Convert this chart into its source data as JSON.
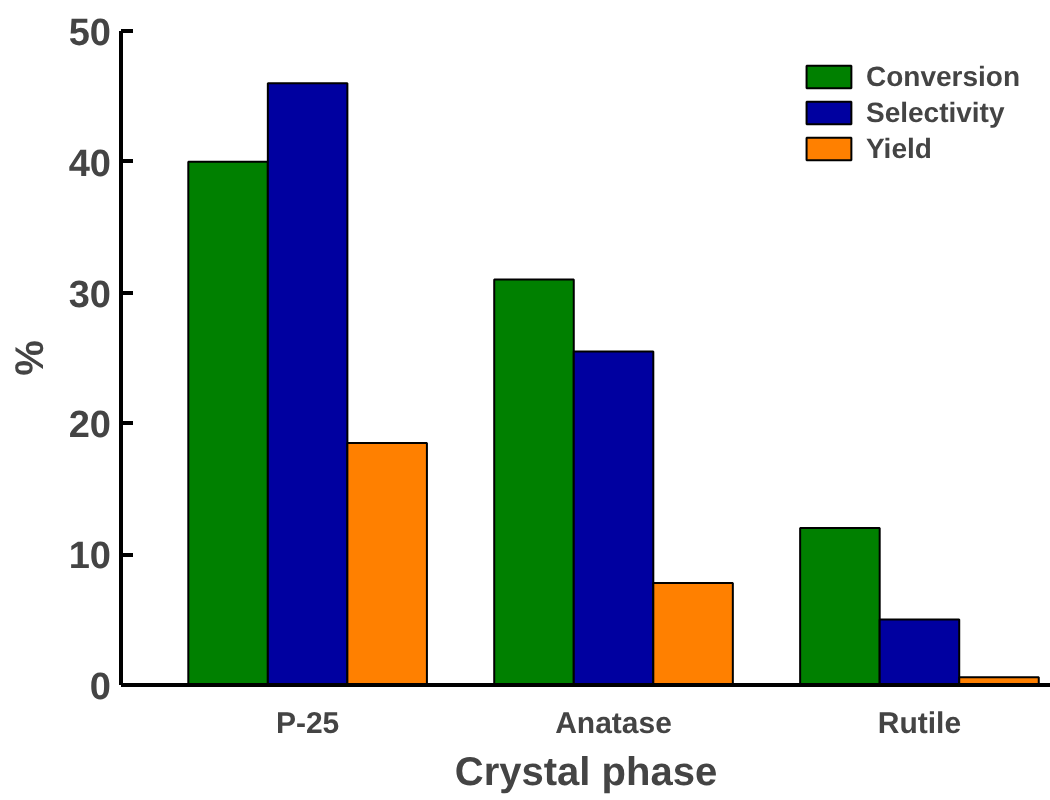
{
  "chart_data": {
    "type": "bar",
    "xlabel": "Crystal phase",
    "ylabel": "%",
    "categories": [
      "P-25",
      "Anatase",
      "Rutile"
    ],
    "series": [
      {
        "name": "Conversion",
        "color": "#008000",
        "values": [
          40,
          31,
          12
        ]
      },
      {
        "name": "Selectivity",
        "color": "#0000a0",
        "values": [
          46,
          25.5,
          5
        ]
      },
      {
        "name": "Yield",
        "color": "#ff8000",
        "values": [
          18.5,
          7.8,
          0.6
        ]
      }
    ],
    "ylim": [
      0,
      50
    ],
    "yticks": [
      0,
      10,
      20,
      30,
      40,
      50
    ],
    "grid": false,
    "legend": "top right"
  }
}
